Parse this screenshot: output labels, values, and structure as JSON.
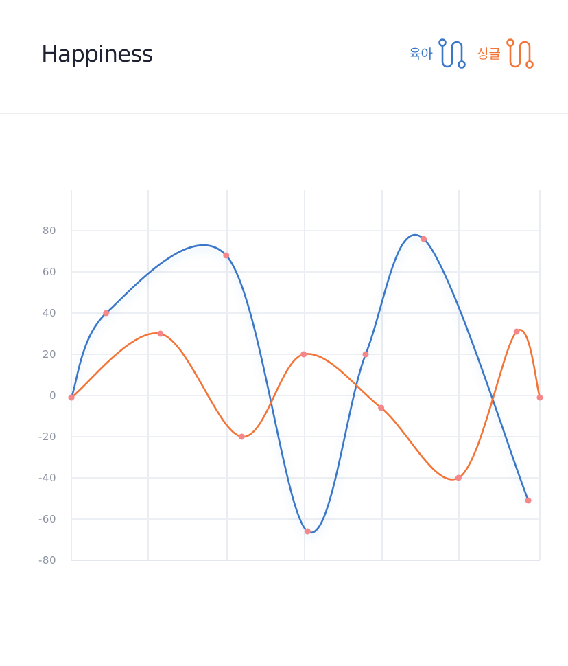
{
  "header": {
    "title": "Happiness"
  },
  "legend": [
    {
      "label": "육아",
      "color": "#3a77c6",
      "icon": "route-icon"
    },
    {
      "label": "싱글",
      "color": "#f27437",
      "icon": "route-icon"
    }
  ],
  "chart_data": {
    "type": "line",
    "title": "Happiness",
    "xlabel": "",
    "ylabel": "",
    "ylim": [
      -80,
      100
    ],
    "yticks": [
      80,
      60,
      40,
      20,
      0,
      -20,
      -40,
      -60,
      -80
    ],
    "grid": true,
    "legend_position": "top-right",
    "marker_color": "#f5878b",
    "series": [
      {
        "name": "육아",
        "color": "#3a77c6",
        "points": [
          [
            0,
            -1
          ],
          [
            0.45,
            40
          ],
          [
            2.0,
            68
          ],
          [
            3.05,
            -66
          ],
          [
            3.8,
            20
          ],
          [
            4.55,
            76
          ],
          [
            5.9,
            -51
          ]
        ]
      },
      {
        "name": "싱글",
        "color": "#f27437",
        "points": [
          [
            0,
            -1
          ],
          [
            1.15,
            30
          ],
          [
            2.2,
            -20
          ],
          [
            3.0,
            20
          ],
          [
            4.0,
            -6
          ],
          [
            5.0,
            -40
          ],
          [
            5.75,
            31
          ],
          [
            6.05,
            -1
          ]
        ]
      }
    ]
  }
}
